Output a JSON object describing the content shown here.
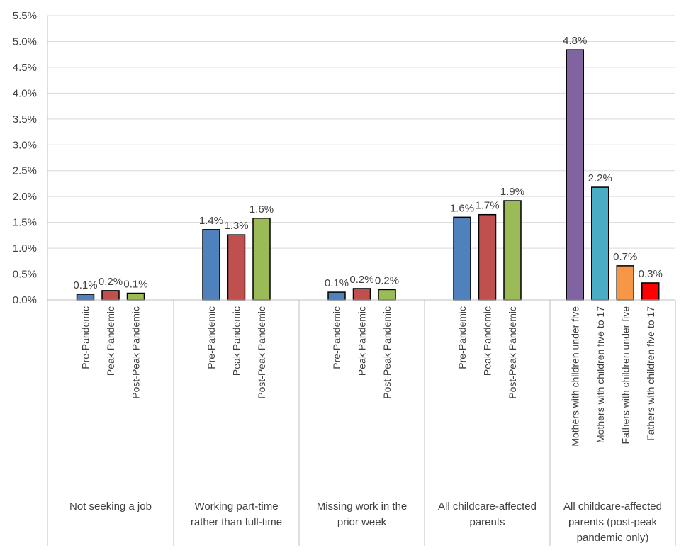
{
  "chart_data": {
    "type": "bar",
    "title": "",
    "xlabel": "",
    "ylabel": "",
    "ylim": [
      0,
      5.5
    ],
    "y_ticks": [
      "0.0%",
      "0.5%",
      "1.0%",
      "1.5%",
      "2.0%",
      "2.5%",
      "3.0%",
      "3.5%",
      "4.0%",
      "4.5%",
      "5.0%",
      "5.5%"
    ],
    "grid": true,
    "legend": "none",
    "groups": [
      {
        "label": "Not seeking a job",
        "label_lines": [
          "Not seeking a job"
        ],
        "bars": [
          {
            "name": "Pre-Pandemic",
            "value": 0.11,
            "label": "0.1%",
            "color": "#4f81bd"
          },
          {
            "name": "Peak Pandemic",
            "value": 0.18,
            "label": "0.2%",
            "color": "#c0504d"
          },
          {
            "name": "Post-Peak Pandemic",
            "value": 0.13,
            "label": "0.1%",
            "color": "#9bbb59"
          }
        ]
      },
      {
        "label": "Working part-time rather than full-time",
        "label_lines": [
          "Working part-time",
          "rather than full-time"
        ],
        "bars": [
          {
            "name": "Pre-Pandemic",
            "value": 1.36,
            "label": "1.4%",
            "color": "#4f81bd"
          },
          {
            "name": "Peak Pandemic",
            "value": 1.26,
            "label": "1.3%",
            "color": "#c0504d"
          },
          {
            "name": "Post-Peak Pandemic",
            "value": 1.58,
            "label": "1.6%",
            "color": "#9bbb59"
          }
        ]
      },
      {
        "label": "Missing work in the prior week",
        "label_lines": [
          "Missing work in the",
          "prior week"
        ],
        "bars": [
          {
            "name": "Pre-Pandemic",
            "value": 0.15,
            "label": "0.1%",
            "color": "#4f81bd"
          },
          {
            "name": "Peak Pandemic",
            "value": 0.22,
            "label": "0.2%",
            "color": "#c0504d"
          },
          {
            "name": "Post-Peak Pandemic",
            "value": 0.2,
            "label": "0.2%",
            "color": "#9bbb59"
          }
        ]
      },
      {
        "label": "All childcare-affected parents",
        "label_lines": [
          "All childcare-affected",
          "parents"
        ],
        "bars": [
          {
            "name": "Pre-Pandemic",
            "value": 1.6,
            "label": "1.6%",
            "color": "#4f81bd"
          },
          {
            "name": "Peak Pandemic",
            "value": 1.65,
            "label": "1.7%",
            "color": "#c0504d"
          },
          {
            "name": "Post-Peak Pandemic",
            "value": 1.92,
            "label": "1.9%",
            "color": "#9bbb59"
          }
        ]
      },
      {
        "label": "All childcare-affected parents (post-peak pandemic only)",
        "label_lines": [
          "All childcare-affected",
          "parents (post-peak",
          "pandemic only)"
        ],
        "bars": [
          {
            "name": "Mothers with children under five",
            "value": 4.84,
            "label": "4.8%",
            "color": "#8064a2"
          },
          {
            "name": "Mothers with children five to 17",
            "value": 2.18,
            "label": "2.2%",
            "color": "#4bacc6"
          },
          {
            "name": "Fathers with children under five",
            "value": 0.66,
            "label": "0.7%",
            "color": "#f79646"
          },
          {
            "name": "Fathers with children five to 17",
            "value": 0.33,
            "label": "0.3%",
            "color": "#ff0000"
          }
        ]
      }
    ]
  }
}
